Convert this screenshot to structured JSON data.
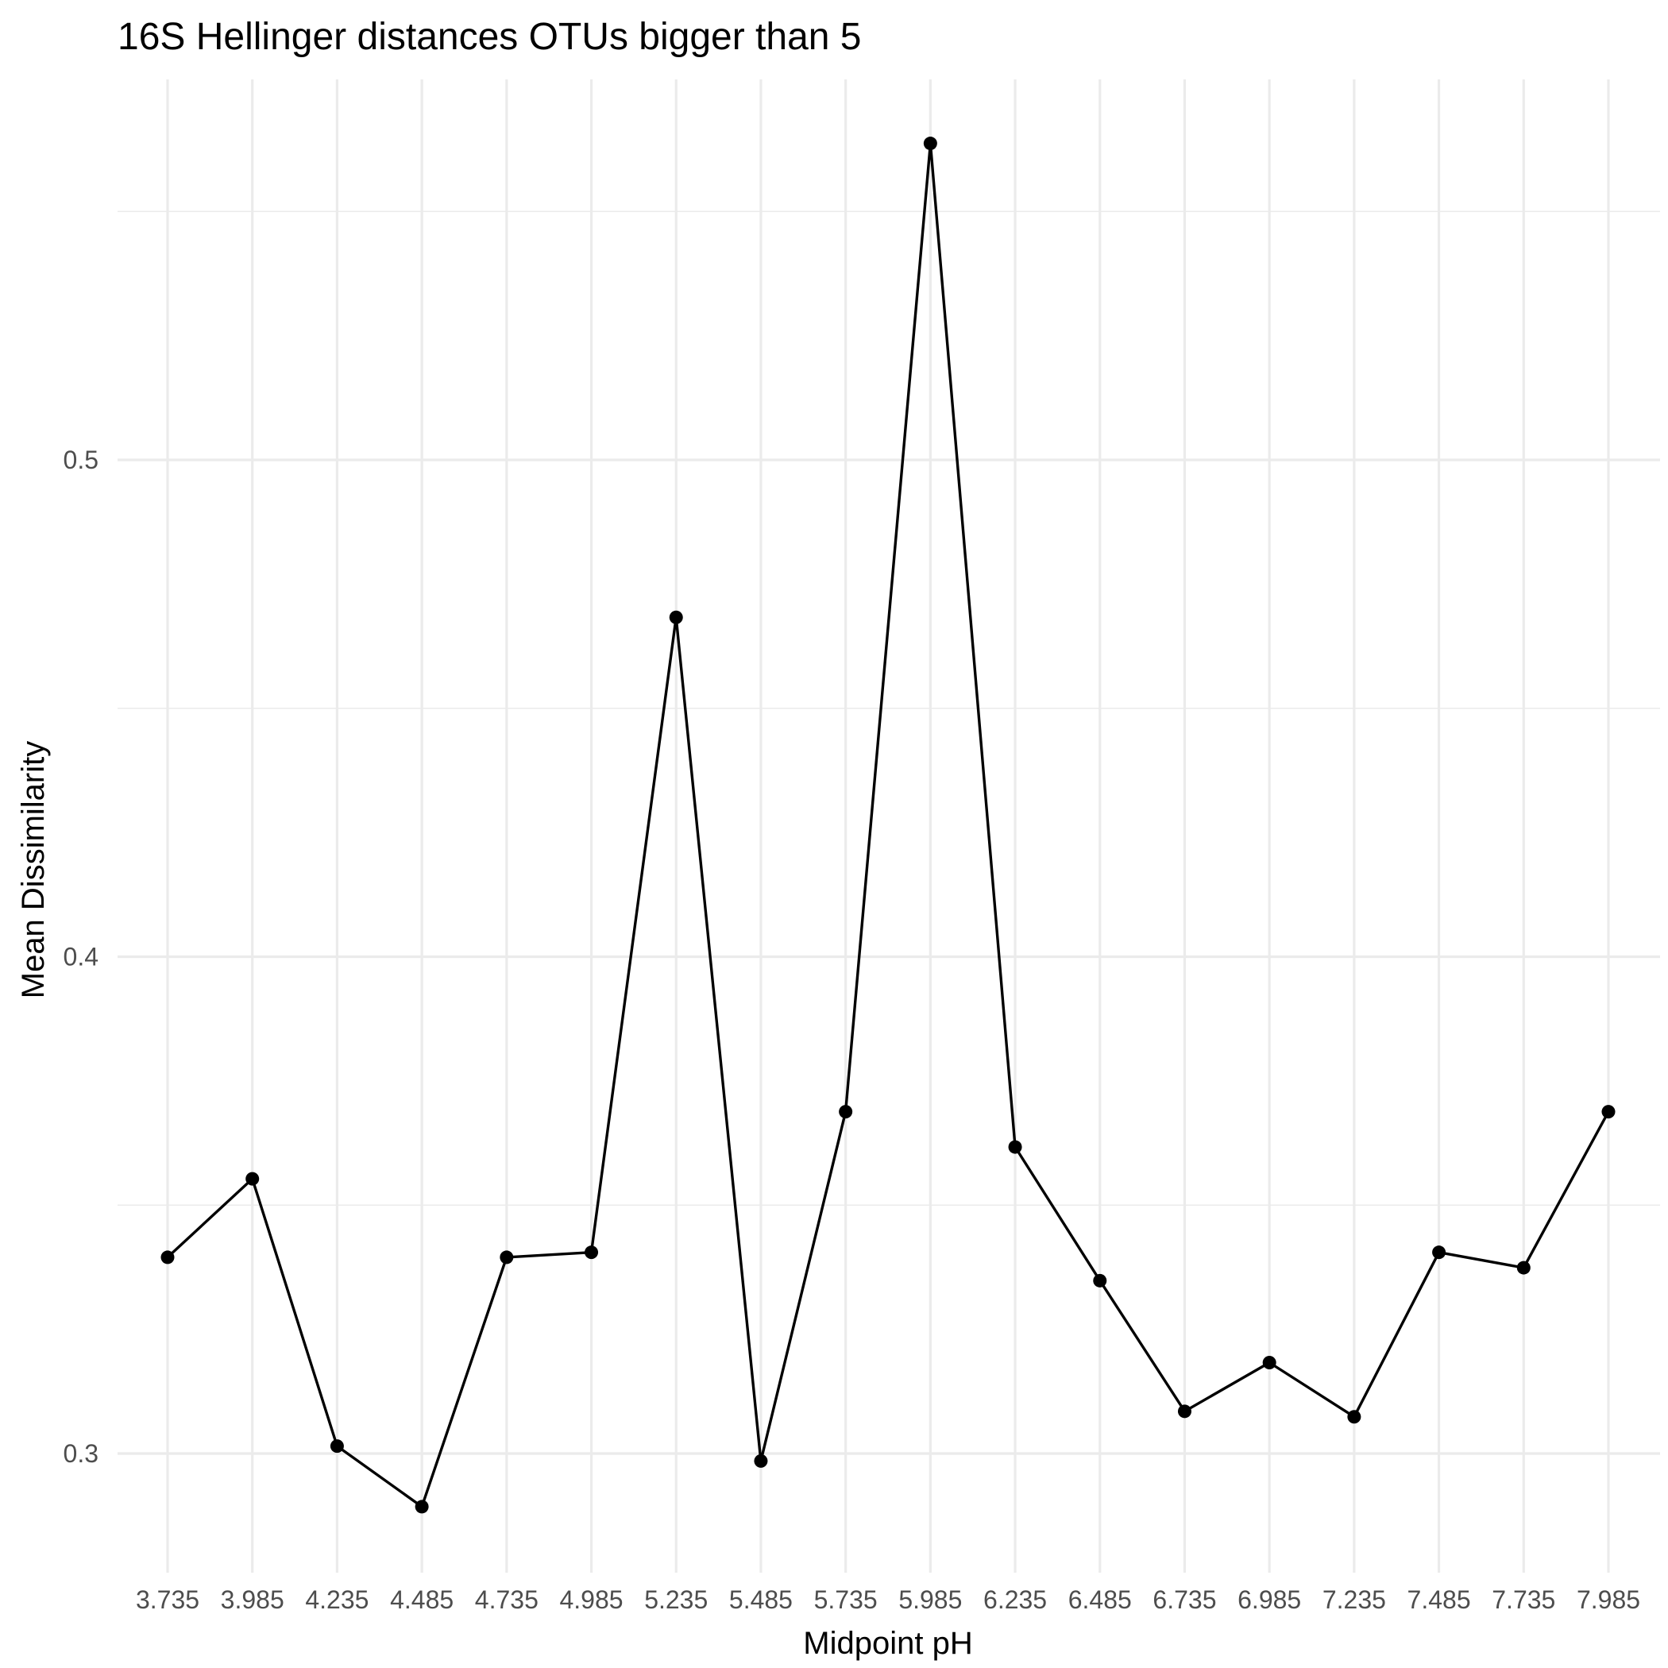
{
  "chart_data": {
    "type": "line",
    "title": "16S Hellinger distances OTUs bigger than 5",
    "xlabel": "Midpoint pH",
    "ylabel": "Mean Dissimilarity",
    "x": [
      3.735,
      3.985,
      4.235,
      4.485,
      4.735,
      4.985,
      5.235,
      5.485,
      5.735,
      5.985,
      6.235,
      6.485,
      6.735,
      6.985,
      7.235,
      7.485,
      7.735,
      7.985
    ],
    "x_tick_labels": [
      "3.735",
      "3.985",
      "4.235",
      "4.485",
      "4.735",
      "4.985",
      "5.235",
      "5.485",
      "5.735",
      "5.985",
      "6.235",
      "6.485",
      "6.735",
      "6.985",
      "7.235",
      "7.485",
      "7.735",
      "7.985"
    ],
    "series": [
      {
        "values": [
          0.3395,
          0.3553,
          0.3015,
          0.2893,
          0.3395,
          0.3405,
          0.4683,
          0.2985,
          0.3688,
          0.5637,
          0.3617,
          0.3348,
          0.3085,
          0.3183,
          0.3074,
          0.3405,
          0.3374,
          0.3688
        ],
        "color": "#000000"
      }
    ],
    "y_ticks": [
      0.3,
      0.4,
      0.5
    ],
    "y_tick_labels": [
      "0.3",
      "0.4",
      "0.5"
    ],
    "y_minor_ticks": [
      0.35,
      0.45,
      0.55
    ],
    "xlim": [
      3.735,
      7.985
    ],
    "ylim": [
      0.2793,
      0.5737
    ],
    "grid": true,
    "legend": "none",
    "colors": {
      "grid": "#ebebeb",
      "line": "#000000",
      "tick_text": "#4d4d4d",
      "text": "#000000",
      "background": "#ffffff"
    }
  }
}
